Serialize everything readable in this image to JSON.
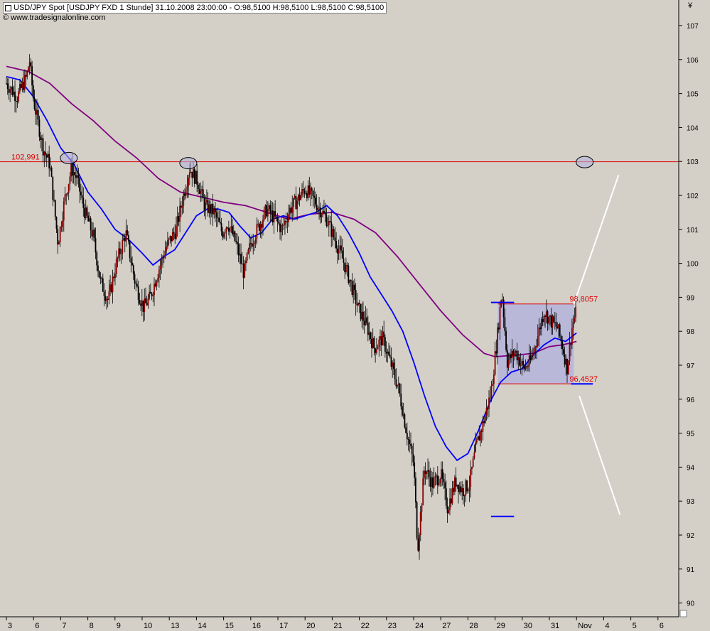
{
  "header": {
    "title": "USD/JPY Spot [USDJPY FXD  1 Stunde] 31.10.2008 23:00:00 - O:98,5100 H:98,5100 L:98,5100 C:98,5100",
    "copyright": "© www.tradesignalonline.com",
    "currency_symbol": "¥"
  },
  "colors": {
    "background": "#d4d0c8",
    "up_candle": "#8b0000",
    "down_candle": "#000000",
    "ma_fast": "#0000ff",
    "ma_slow": "#800080",
    "resistance": "#e00000",
    "range_fill": "#b4b4dc",
    "projection": "#ffffff"
  },
  "chart_data": {
    "type": "candlestick",
    "instrument": "USD/JPY Spot",
    "interval": "1 Stunde",
    "y_axis": {
      "min": 89.8,
      "max": 107.2,
      "ticks": [
        "107",
        "106",
        "105",
        "104",
        "103",
        "102",
        "101",
        "100",
        "99",
        "98",
        "97",
        "96",
        "95",
        "94",
        "93",
        "92",
        "91",
        "90"
      ]
    },
    "x_axis": {
      "ticks": [
        "3",
        "6",
        "7",
        "8",
        "9",
        "10",
        "13",
        "14",
        "15",
        "16",
        "17",
        "20",
        "21",
        "22",
        "23",
        "24",
        "27",
        "28",
        "29",
        "30",
        "31",
        "Nov",
        "4",
        "5",
        "6"
      ]
    },
    "horizontal_level": {
      "value": 102.991,
      "label": "102,991"
    },
    "range_box": {
      "top": 98.8057,
      "bottom": 96.4527,
      "top_label": "98,8057",
      "bottom_label": "96,4527",
      "from_index": 18.1,
      "to_index": 20.9
    },
    "marker_lines": [
      {
        "value": 98.85,
        "from_index": 17.85,
        "to_index": 18.7
      },
      {
        "value": 92.55,
        "from_index": 17.85,
        "to_index": 18.7
      },
      {
        "value": 96.45,
        "from_index": 20.8,
        "to_index": 21.6
      }
    ],
    "highlight_ellipses": [
      {
        "index": 2.3,
        "value": 103.1
      },
      {
        "index": 6.7,
        "value": 102.95
      },
      {
        "index": 21.3,
        "value": 102.98
      }
    ],
    "projection_lines": [
      {
        "from": [
          20.9,
          98.8
        ],
        "to": [
          22.55,
          102.6
        ]
      },
      {
        "from": [
          21.1,
          96.1
        ],
        "to": [
          22.6,
          92.6
        ]
      }
    ],
    "price_path": [
      [
        0.0,
        105.3
      ],
      [
        0.4,
        104.9
      ],
      [
        0.75,
        105.5
      ],
      [
        0.85,
        106.0
      ],
      [
        1.0,
        104.8
      ],
      [
        1.35,
        103.4
      ],
      [
        1.6,
        102.9
      ],
      [
        1.9,
        100.6
      ],
      [
        2.15,
        101.9
      ],
      [
        2.4,
        102.8
      ],
      [
        2.6,
        102.5
      ],
      [
        2.85,
        101.6
      ],
      [
        3.2,
        100.8
      ],
      [
        3.45,
        99.5
      ],
      [
        3.75,
        98.9
      ],
      [
        4.05,
        100.0
      ],
      [
        4.4,
        100.9
      ],
      [
        4.75,
        99.4
      ],
      [
        5.05,
        98.7
      ],
      [
        5.3,
        99.0
      ],
      [
        5.6,
        99.8
      ],
      [
        5.9,
        100.5
      ],
      [
        6.25,
        101.0
      ],
      [
        6.55,
        102.1
      ],
      [
        6.75,
        102.8
      ],
      [
        7.05,
        102.4
      ],
      [
        7.3,
        101.7
      ],
      [
        7.65,
        101.5
      ],
      [
        7.95,
        100.9
      ],
      [
        8.15,
        101.2
      ],
      [
        8.45,
        100.6
      ],
      [
        8.75,
        99.7
      ],
      [
        9.0,
        100.6
      ],
      [
        9.3,
        101.1
      ],
      [
        9.6,
        101.6
      ],
      [
        9.9,
        101.3
      ],
      [
        10.15,
        101.0
      ],
      [
        10.45,
        101.6
      ],
      [
        10.75,
        101.9
      ],
      [
        11.0,
        102.2
      ],
      [
        11.3,
        101.9
      ],
      [
        11.55,
        101.6
      ],
      [
        11.8,
        101.3
      ],
      [
        12.05,
        100.8
      ],
      [
        12.35,
        100.2
      ],
      [
        12.65,
        99.5
      ],
      [
        12.95,
        98.7
      ],
      [
        13.3,
        98.1
      ],
      [
        13.55,
        97.5
      ],
      [
        13.85,
        97.8
      ],
      [
        14.1,
        97.2
      ],
      [
        14.45,
        96.3
      ],
      [
        14.75,
        95.0
      ],
      [
        15.0,
        94.1
      ],
      [
        15.15,
        91.6
      ],
      [
        15.4,
        94.0
      ],
      [
        15.7,
        93.5
      ],
      [
        16.0,
        93.8
      ],
      [
        16.25,
        92.8
      ],
      [
        16.55,
        93.6
      ],
      [
        16.8,
        93.3
      ],
      [
        17.05,
        93.5
      ],
      [
        17.3,
        94.6
      ],
      [
        17.6,
        95.4
      ],
      [
        17.85,
        96.2
      ],
      [
        18.05,
        97.6
      ],
      [
        18.25,
        99.2
      ],
      [
        18.45,
        97.1
      ],
      [
        18.75,
        97.4
      ],
      [
        19.05,
        96.9
      ],
      [
        19.3,
        97.1
      ],
      [
        19.55,
        97.8
      ],
      [
        19.8,
        98.6
      ],
      [
        20.05,
        98.3
      ],
      [
        20.3,
        98.1
      ],
      [
        20.5,
        97.5
      ],
      [
        20.65,
        96.9
      ],
      [
        20.85,
        98.2
      ],
      [
        21.0,
        98.6
      ]
    ],
    "ma_fast": [
      [
        0.0,
        105.5
      ],
      [
        0.5,
        105.4
      ],
      [
        1.0,
        104.9
      ],
      [
        1.5,
        104.2
      ],
      [
        2.0,
        103.4
      ],
      [
        2.5,
        102.9
      ],
      [
        3.0,
        102.1
      ],
      [
        3.5,
        101.6
      ],
      [
        4.0,
        101.0
      ],
      [
        4.5,
        100.7
      ],
      [
        5.0,
        100.3
      ],
      [
        5.4,
        99.95
      ],
      [
        5.8,
        100.2
      ],
      [
        6.2,
        100.4
      ],
      [
        6.6,
        100.9
      ],
      [
        7.0,
        101.4
      ],
      [
        7.4,
        101.6
      ],
      [
        7.8,
        101.6
      ],
      [
        8.2,
        101.5
      ],
      [
        8.6,
        101.1
      ],
      [
        9.0,
        100.75
      ],
      [
        9.4,
        100.9
      ],
      [
        9.8,
        101.3
      ],
      [
        10.2,
        101.4
      ],
      [
        10.6,
        101.3
      ],
      [
        11.0,
        101.4
      ],
      [
        11.4,
        101.5
      ],
      [
        11.8,
        101.7
      ],
      [
        12.2,
        101.4
      ],
      [
        12.6,
        100.9
      ],
      [
        13.0,
        100.3
      ],
      [
        13.4,
        99.6
      ],
      [
        13.8,
        99.1
      ],
      [
        14.2,
        98.6
      ],
      [
        14.6,
        98.0
      ],
      [
        15.0,
        97.1
      ],
      [
        15.4,
        96.1
      ],
      [
        15.8,
        95.2
      ],
      [
        16.2,
        94.6
      ],
      [
        16.6,
        94.2
      ],
      [
        17.0,
        94.4
      ],
      [
        17.4,
        95.1
      ],
      [
        17.8,
        95.9
      ],
      [
        18.2,
        96.5
      ],
      [
        18.6,
        96.8
      ],
      [
        19.0,
        96.9
      ],
      [
        19.4,
        97.3
      ],
      [
        19.8,
        97.6
      ],
      [
        20.2,
        97.8
      ],
      [
        20.6,
        97.7
      ],
      [
        21.0,
        97.95
      ]
    ],
    "ma_slow": [
      [
        0.0,
        105.8
      ],
      [
        0.8,
        105.65
      ],
      [
        1.6,
        105.3
      ],
      [
        2.4,
        104.7
      ],
      [
        3.2,
        104.2
      ],
      [
        4.0,
        103.6
      ],
      [
        4.8,
        103.1
      ],
      [
        5.6,
        102.5
      ],
      [
        6.4,
        102.1
      ],
      [
        7.2,
        101.95
      ],
      [
        8.0,
        101.8
      ],
      [
        8.8,
        101.7
      ],
      [
        9.6,
        101.5
      ],
      [
        10.4,
        101.3
      ],
      [
        11.2,
        101.45
      ],
      [
        12.0,
        101.5
      ],
      [
        12.8,
        101.3
      ],
      [
        13.6,
        100.9
      ],
      [
        14.4,
        100.2
      ],
      [
        15.2,
        99.4
      ],
      [
        16.0,
        98.6
      ],
      [
        16.8,
        97.9
      ],
      [
        17.6,
        97.35
      ],
      [
        18.0,
        97.25
      ],
      [
        18.8,
        97.3
      ],
      [
        19.4,
        97.35
      ],
      [
        20.0,
        97.55
      ],
      [
        20.5,
        97.6
      ],
      [
        21.0,
        97.7
      ]
    ]
  }
}
